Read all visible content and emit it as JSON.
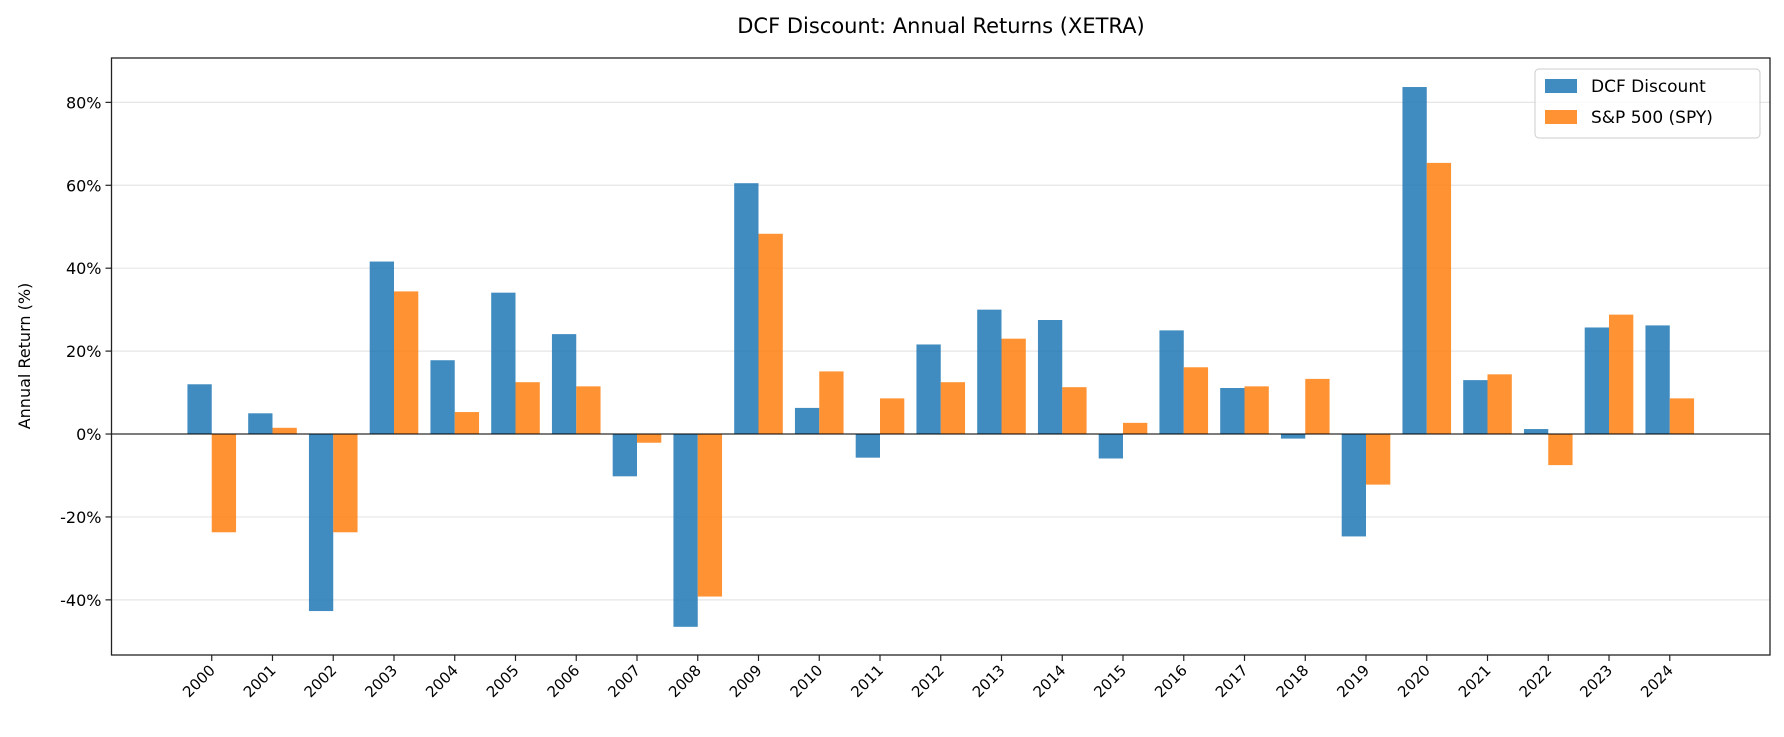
{
  "chart_data": {
    "type": "bar",
    "title": "DCF Discount: Annual Returns (XETRA)",
    "xlabel": "",
    "ylabel": "Annual Return (%)",
    "ylim": [
      -53.3,
      90.7
    ],
    "yticks": [
      -40,
      -20,
      0,
      20,
      40,
      60,
      80
    ],
    "ytick_labels": [
      "-40%",
      "-20%",
      "0%",
      "20%",
      "40%",
      "60%",
      "80%"
    ],
    "grid": "horizontal",
    "legend_position": "top-right",
    "categories": [
      "2000",
      "2001",
      "2002",
      "2003",
      "2004",
      "2005",
      "2006",
      "2007",
      "2008",
      "2009",
      "2010",
      "2011",
      "2012",
      "2013",
      "2014",
      "2015",
      "2016",
      "2017",
      "2018",
      "2019",
      "2020",
      "2021",
      "2022",
      "2023",
      "2024"
    ],
    "series": [
      {
        "name": "DCF Discount",
        "color": "#1f77b4",
        "values": [
          12.0,
          5.0,
          -42.7,
          41.6,
          17.8,
          34.1,
          24.1,
          -10.2,
          -46.5,
          60.5,
          6.3,
          -5.7,
          21.6,
          30.0,
          27.5,
          -5.9,
          25.0,
          11.1,
          -1.1,
          -24.7,
          83.7,
          13.0,
          1.2,
          25.7,
          26.2
        ]
      },
      {
        "name": "S&P 500 (SPY)",
        "color": "#ff7f0e",
        "values": [
          -23.7,
          1.5,
          -23.7,
          34.4,
          5.3,
          12.5,
          11.5,
          -2.1,
          -39.2,
          48.3,
          15.1,
          8.6,
          12.5,
          23.0,
          11.3,
          2.7,
          16.1,
          11.5,
          13.3,
          -12.2,
          65.4,
          14.4,
          -7.5,
          28.8,
          8.6
        ]
      }
    ]
  }
}
